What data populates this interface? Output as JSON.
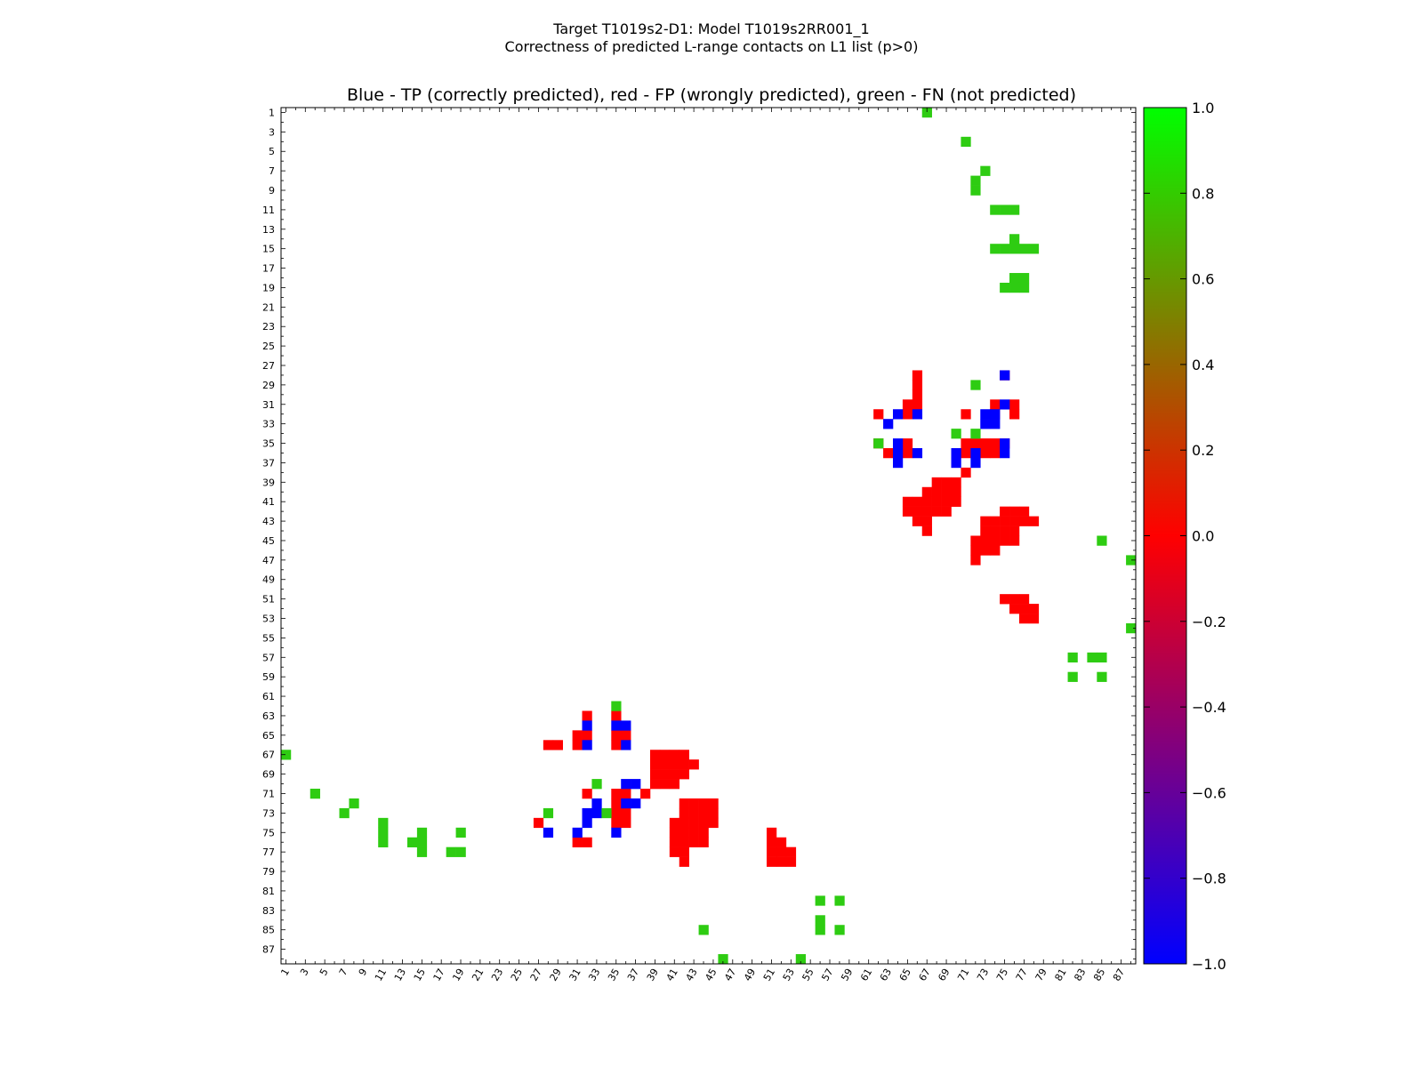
{
  "figure": {
    "title_line1": "Target T1019s2-D1: Model T1019s2RR001_1",
    "title_line2": "Correctness of predicted L-range contacts on L1 list (p>0)"
  },
  "chart_data": {
    "type": "heatmap",
    "title": "Blue - TP (correctly predicted), red - FP (wrongly predicted), green - FN (not predicted)",
    "xlabel": "",
    "ylabel": "",
    "xlim": [
      1,
      88
    ],
    "ylim": [
      1,
      88
    ],
    "x_tick_labels": [
      "1",
      "3",
      "5",
      "7",
      "9",
      "11",
      "13",
      "15",
      "17",
      "19",
      "21",
      "23",
      "25",
      "27",
      "29",
      "31",
      "33",
      "35",
      "37",
      "39",
      "41",
      "43",
      "45",
      "47",
      "49",
      "51",
      "53",
      "55",
      "57",
      "59",
      "61",
      "63",
      "65",
      "67",
      "69",
      "71",
      "73",
      "75",
      "77",
      "79",
      "81",
      "83",
      "85",
      "87"
    ],
    "y_tick_labels": [
      "1",
      "3",
      "5",
      "7",
      "9",
      "11",
      "13",
      "15",
      "17",
      "19",
      "21",
      "23",
      "25",
      "27",
      "29",
      "31",
      "33",
      "35",
      "37",
      "39",
      "41",
      "43",
      "45",
      "47",
      "49",
      "51",
      "53",
      "55",
      "57",
      "59",
      "61",
      "63",
      "65",
      "67",
      "69",
      "71",
      "73",
      "75",
      "77",
      "79",
      "81",
      "83",
      "85",
      "87"
    ],
    "colorbar": {
      "min": -1.0,
      "max": 1.0,
      "ticks": [
        "1.0",
        "0.8",
        "0.6",
        "0.4",
        "0.2",
        "0.0",
        "−0.2",
        "−0.4",
        "−0.6",
        "−0.8",
        "−1.0"
      ],
      "colors": [
        "#0000ff",
        "#ff0000",
        "#00ff00"
      ]
    },
    "legend": {
      "TP": {
        "value": -1,
        "color": "#0000ff"
      },
      "FP": {
        "value": 0,
        "color": "#ff0000"
      },
      "FN": {
        "value": 1,
        "color": "#2ecc12"
      }
    },
    "FN": [
      [
        1,
        67
      ],
      [
        4,
        71
      ],
      [
        7,
        73
      ],
      [
        8,
        72
      ],
      [
        9,
        72
      ],
      [
        11,
        74
      ],
      [
        11,
        75
      ],
      [
        11,
        76
      ],
      [
        14,
        76
      ],
      [
        15,
        74
      ],
      [
        15,
        75
      ],
      [
        15,
        76
      ],
      [
        15,
        77
      ],
      [
        15,
        78
      ],
      [
        18,
        76
      ],
      [
        18,
        77
      ],
      [
        19,
        76
      ],
      [
        19,
        75
      ],
      [
        19,
        77
      ],
      [
        29,
        72
      ],
      [
        34,
        70
      ],
      [
        34,
        72
      ],
      [
        35,
        62
      ],
      [
        45,
        85
      ],
      [
        47,
        88
      ],
      [
        54,
        88
      ],
      [
        57,
        82
      ],
      [
        57,
        84
      ],
      [
        57,
        85
      ],
      [
        59,
        82
      ],
      [
        59,
        85
      ],
      [
        62,
        35
      ],
      [
        67,
        1
      ],
      [
        70,
        33
      ],
      [
        71,
        4
      ],
      [
        72,
        8
      ],
      [
        73,
        7
      ],
      [
        73,
        28
      ],
      [
        73,
        34
      ],
      [
        74,
        11
      ],
      [
        75,
        11
      ],
      [
        75,
        15
      ],
      [
        75,
        19
      ],
      [
        76,
        11
      ],
      [
        76,
        14
      ],
      [
        76,
        15
      ],
      [
        77,
        15
      ],
      [
        77,
        18
      ],
      [
        77,
        19
      ],
      [
        82,
        56
      ],
      [
        82,
        58
      ],
      [
        84,
        56
      ],
      [
        85,
        44
      ],
      [
        85,
        56
      ],
      [
        85,
        58
      ],
      [
        88,
        46
      ],
      [
        88,
        54
      ]
    ],
    "TP": [
      [
        28,
        75
      ],
      [
        31,
        75
      ],
      [
        32,
        64
      ],
      [
        32,
        66
      ],
      [
        32,
        73
      ],
      [
        32,
        74
      ],
      [
        33,
        63
      ],
      [
        33,
        73
      ],
      [
        33,
        74
      ],
      [
        35,
        64
      ],
      [
        35,
        75
      ],
      [
        36,
        64
      ],
      [
        36,
        66
      ],
      [
        36,
        70
      ],
      [
        36,
        72
      ],
      [
        36,
        75
      ],
      [
        37,
        64
      ],
      [
        37,
        70
      ],
      [
        37,
        72
      ],
      [
        64,
        32
      ],
      [
        64,
        35
      ],
      [
        64,
        36
      ],
      [
        66,
        32
      ],
      [
        66,
        36
      ],
      [
        70,
        36
      ],
      [
        70,
        37
      ],
      [
        72,
        33
      ],
      [
        72,
        36
      ],
      [
        72,
        37
      ],
      [
        73,
        32
      ],
      [
        73,
        33
      ],
      [
        74,
        32
      ],
      [
        75,
        28
      ],
      [
        75,
        31
      ],
      [
        75,
        35
      ]
    ],
    "FP": [
      [
        28,
        66
      ],
      [
        28,
        75
      ],
      [
        29,
        66
      ],
      [
        30,
        66
      ],
      [
        31,
        65
      ],
      [
        31,
        66
      ],
      [
        31,
        74
      ],
      [
        31,
        76
      ],
      [
        32,
        62
      ],
      [
        32,
        65
      ],
      [
        32,
        71
      ],
      [
        32,
        74
      ],
      [
        32,
        76
      ],
      [
        35,
        62
      ],
      [
        35,
        65
      ],
      [
        35,
        71
      ],
      [
        35,
        72
      ],
      [
        35,
        73
      ],
      [
        35,
        74
      ],
      [
        35,
        75
      ],
      [
        36,
        63
      ],
      [
        36,
        65
      ],
      [
        36,
        71
      ],
      [
        36,
        73
      ],
      [
        36,
        74
      ],
      [
        38,
        71
      ],
      [
        39,
        68
      ],
      [
        39,
        69
      ],
      [
        39,
        70
      ],
      [
        40,
        67
      ],
      [
        40,
        68
      ],
      [
        40,
        69
      ],
      [
        40,
        70
      ],
      [
        41,
        65
      ],
      [
        41,
        66
      ],
      [
        41,
        67
      ],
      [
        41,
        68
      ],
      [
        41,
        69
      ],
      [
        41,
        70
      ],
      [
        42,
        65
      ],
      [
        42,
        66
      ],
      [
        42,
        67
      ],
      [
        42,
        68
      ],
      [
        42,
        69
      ],
      [
        42,
        75
      ],
      [
        42,
        76
      ],
      [
        42,
        77
      ],
      [
        43,
        66
      ],
      [
        43,
        67
      ],
      [
        43,
        73
      ],
      [
        43,
        74
      ],
      [
        43,
        75
      ],
      [
        43,
        76
      ],
      [
        43,
        77
      ],
      [
        43,
        78
      ],
      [
        44,
        67
      ],
      [
        44,
        73
      ],
      [
        44,
        74
      ],
      [
        44,
        75
      ],
      [
        44,
        76
      ],
      [
        45,
        72
      ],
      [
        45,
        73
      ],
      [
        45,
        74
      ],
      [
        45,
        75
      ],
      [
        45,
        76
      ],
      [
        46,
        72
      ],
      [
        46,
        73
      ],
      [
        46,
        74
      ],
      [
        47,
        72
      ],
      [
        51,
        75
      ],
      [
        51,
        76
      ],
      [
        51,
        77
      ],
      [
        52,
        76
      ],
      [
        52,
        77
      ],
      [
        52,
        78
      ],
      [
        53,
        77
      ],
      [
        53,
        78
      ],
      [
        63,
        32
      ],
      [
        63,
        35
      ],
      [
        65,
        31
      ],
      [
        65,
        32
      ],
      [
        65,
        35
      ],
      [
        65,
        36
      ],
      [
        66,
        28
      ],
      [
        66,
        29
      ],
      [
        66,
        31
      ],
      [
        66,
        35
      ],
      [
        67,
        39
      ],
      [
        67,
        40
      ],
      [
        67,
        41
      ],
      [
        67,
        42
      ],
      [
        68,
        39
      ],
      [
        68,
        40
      ],
      [
        68,
        41
      ],
      [
        68,
        42
      ],
      [
        68,
        43
      ],
      [
        69,
        39
      ],
      [
        69,
        40
      ],
      [
        69,
        41
      ],
      [
        69,
        42
      ],
      [
        70,
        39
      ],
      [
        70,
        40
      ],
      [
        70,
        41
      ],
      [
        71,
        32
      ],
      [
        71,
        35
      ],
      [
        71,
        36
      ],
      [
        71,
        38
      ],
      [
        72,
        35
      ],
      [
        72,
        42
      ],
      [
        72,
        43
      ],
      [
        72,
        44
      ],
      [
        72,
        45
      ],
      [
        73,
        35
      ],
      [
        73,
        36
      ],
      [
        73,
        42
      ],
      [
        73,
        43
      ],
      [
        73,
        44
      ],
      [
        73,
        45
      ],
      [
        74,
        27
      ],
      [
        74,
        35
      ],
      [
        74,
        36
      ],
      [
        74,
        41
      ],
      [
        74,
        42
      ],
      [
        74,
        43
      ],
      [
        74,
        44
      ],
      [
        74,
        45
      ],
      [
        75,
        41
      ],
      [
        75,
        42
      ],
      [
        75,
        43
      ],
      [
        75,
        44
      ],
      [
        75,
        51
      ],
      [
        76,
        31
      ],
      [
        76,
        32
      ],
      [
        76,
        41
      ],
      [
        76,
        42
      ],
      [
        76,
        43
      ],
      [
        76,
        44
      ],
      [
        76,
        51
      ],
      [
        76,
        52
      ],
      [
        77,
        41
      ],
      [
        77,
        42
      ],
      [
        77,
        51
      ],
      [
        77,
        52
      ],
      [
        77,
        53
      ],
      [
        78,
        42
      ],
      [
        78,
        51
      ],
      [
        78,
        52
      ],
      [
        78,
        53
      ]
    ]
  }
}
